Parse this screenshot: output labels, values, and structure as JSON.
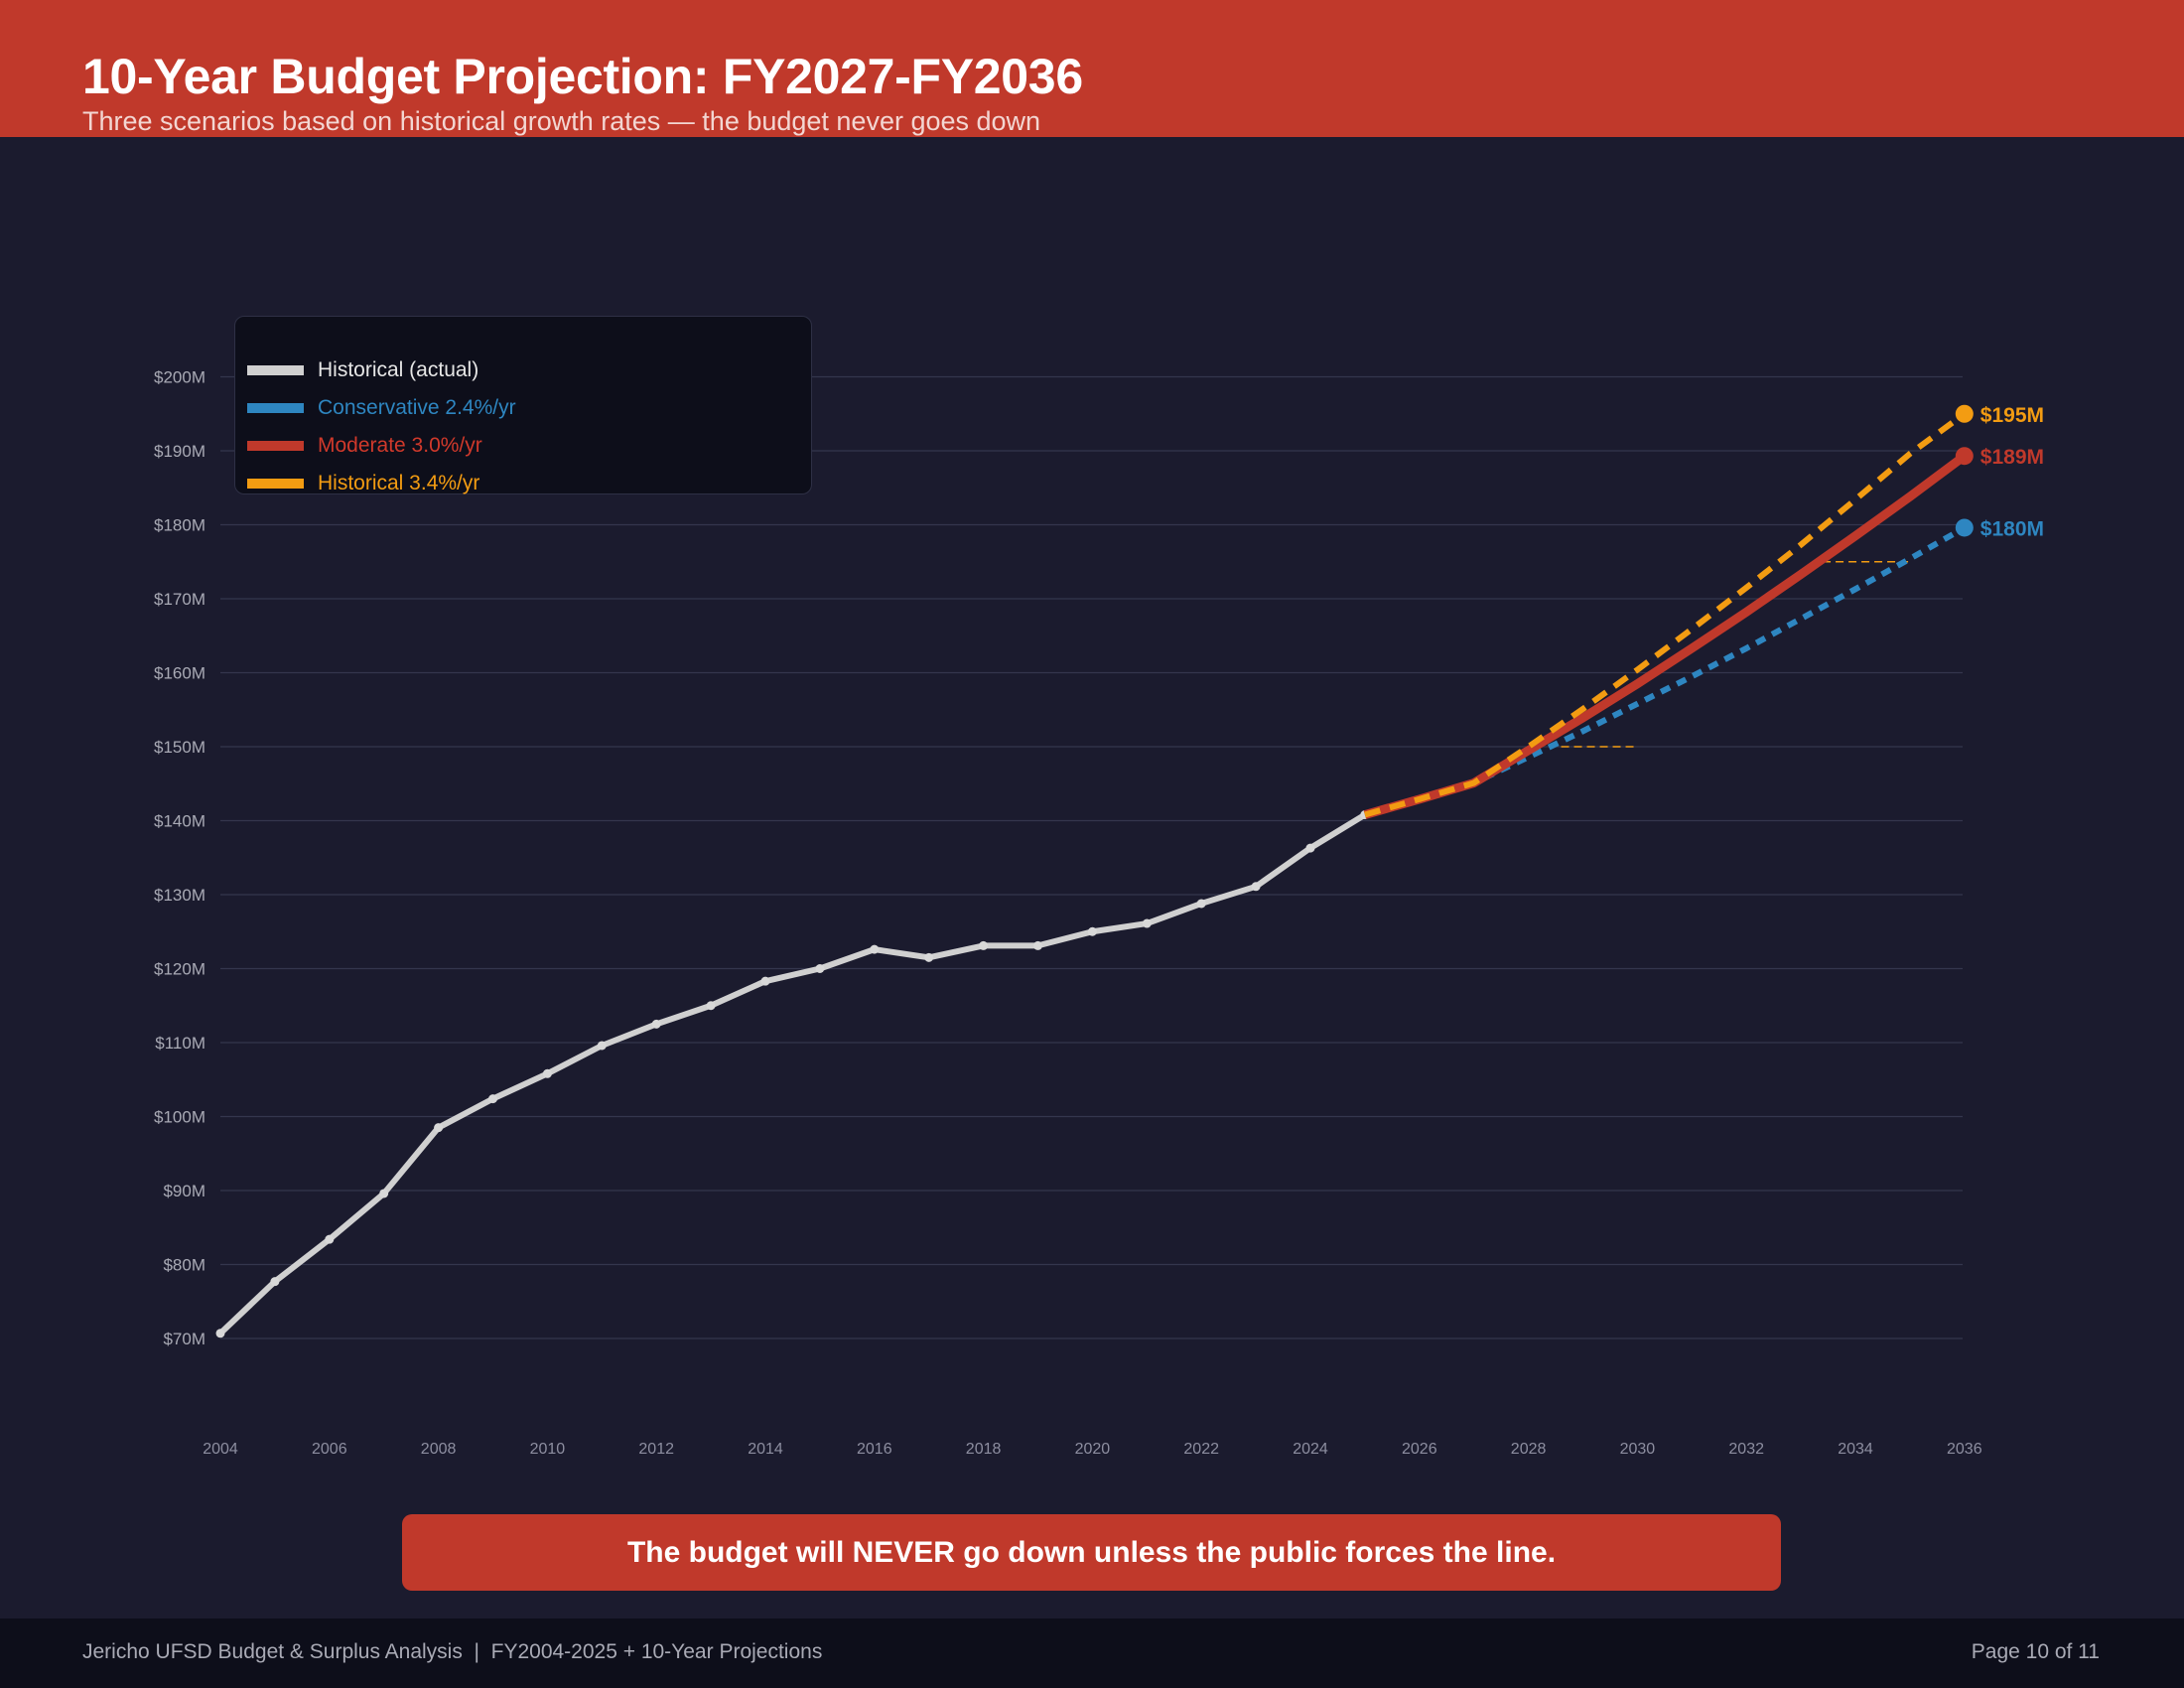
{
  "header": {
    "title": "10-Year Budget Projection: FY2027-FY2036",
    "subtitle": "Three scenarios based on historical growth rates — the budget never goes down"
  },
  "legend": {
    "items": [
      {
        "label": "Historical (actual)",
        "color": "#d0d0d0"
      },
      {
        "label": "Conservative 2.4%/yr",
        "color": "#2e86c1"
      },
      {
        "label": "Moderate 3.0%/yr",
        "color": "#c0392b"
      },
      {
        "label": "Historical 3.4%/yr",
        "color": "#f39c12"
      }
    ]
  },
  "end_labels": {
    "historical_rate": "$195M",
    "moderate": "$189M",
    "conservative": "$180M"
  },
  "callout": {
    "text": "The budget will NEVER go down unless the public forces the line."
  },
  "footer": {
    "left": "Jericho UFSD Budget & Surplus Analysis  |  FY2004-2025 + 10-Year Projections",
    "right": "Page 10 of 11"
  },
  "colors": {
    "header_bg": "#c0392b",
    "page_bg": "#1b1b2e",
    "footer_bg": "#0d0e1a",
    "historical": "#d0d0d0",
    "conservative": "#2e86c1",
    "moderate": "#c0392b",
    "historical_rate": "#f39c12"
  },
  "chart_data": {
    "type": "line",
    "title": "10-Year Budget Projection: FY2027-FY2036",
    "subtitle": "Three scenarios based on historical growth rates — the budget never goes down",
    "xlabel": "",
    "ylabel": "",
    "y_unit": "$M",
    "ylim": [
      70,
      200
    ],
    "yticks": [
      "$70M",
      "$80M",
      "$90M",
      "$100M",
      "$110M",
      "$120M",
      "$130M",
      "$140M",
      "$150M",
      "$160M",
      "$170M",
      "$180M",
      "$190M",
      "$200M"
    ],
    "xticks": [
      "2004",
      "2006",
      "2008",
      "2010",
      "2012",
      "2014",
      "2016",
      "2018",
      "2020",
      "2022",
      "2024",
      "2026",
      "2028",
      "2030",
      "2032",
      "2034",
      "2036"
    ],
    "xlim": [
      2004,
      2036
    ],
    "grid": true,
    "legend_position": "upper left",
    "series": [
      {
        "name": "Historical (actual)",
        "style": "solid",
        "x": [
          2004,
          2005,
          2006,
          2007,
          2008,
          2009,
          2010,
          2011,
          2012,
          2013,
          2014,
          2015,
          2016,
          2017,
          2018,
          2019,
          2020,
          2021,
          2022,
          2023,
          2024,
          2025
        ],
        "values": [
          70.7,
          77.7,
          83.4,
          89.6,
          98.5,
          102.4,
          105.8,
          109.6,
          112.5,
          115.0,
          118.3,
          120.0,
          122.6,
          121.5,
          123.1,
          123.1,
          125.0,
          126.1,
          128.8,
          131.1,
          136.3,
          140.8
        ]
      },
      {
        "name": "Conservative 2.4%/yr",
        "style": "dotted",
        "x": [
          2025,
          2026,
          2027,
          2028,
          2029,
          2030,
          2031,
          2032,
          2033,
          2034,
          2035,
          2036
        ],
        "values": [
          140.8,
          142.9,
          145.1,
          148.6,
          152.1,
          155.8,
          159.5,
          163.3,
          167.3,
          171.3,
          175.4,
          179.6
        ]
      },
      {
        "name": "Moderate 3.0%/yr",
        "style": "solid",
        "x": [
          2025,
          2026,
          2027,
          2028,
          2029,
          2030,
          2031,
          2032,
          2033,
          2034,
          2035,
          2036
        ],
        "values": [
          140.8,
          142.9,
          145.1,
          149.5,
          153.9,
          158.5,
          163.3,
          168.2,
          173.3,
          178.5,
          183.8,
          189.3
        ]
      },
      {
        "name": "Historical 3.4%/yr",
        "style": "dashed",
        "x": [
          2025,
          2026,
          2027,
          2028,
          2029,
          2030,
          2031,
          2032,
          2033,
          2034,
          2035,
          2036
        ],
        "values": [
          140.8,
          142.9,
          145.1,
          150.0,
          155.1,
          160.4,
          165.9,
          171.5,
          177.3,
          183.4,
          189.6,
          195.0
        ]
      }
    ],
    "annotations": [
      {
        "text": "$195M",
        "x": 2036,
        "y": 195,
        "series": "Historical 3.4%/yr"
      },
      {
        "text": "$189M",
        "x": 2036,
        "y": 189,
        "series": "Moderate 3.0%/yr"
      },
      {
        "text": "$180M",
        "x": 2036,
        "y": 180,
        "series": "Conservative 2.4%/yr"
      },
      {
        "type": "dashed-marker",
        "y": 150,
        "x_range": [
          2028.6,
          2030
        ]
      },
      {
        "type": "dashed-marker",
        "y": 175,
        "x_range": [
          2033.4,
          2035
        ]
      }
    ]
  }
}
